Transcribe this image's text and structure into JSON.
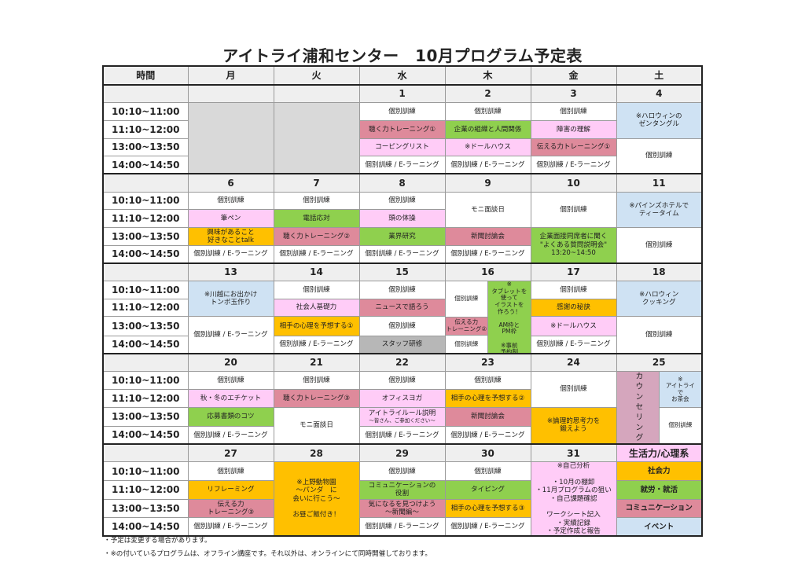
{
  "title": "アイトライ浦和センター　10月プログラム予定表",
  "colors": {
    "white": "#ffffff",
    "gray": "#d9d9d9",
    "pink": "#ffccf7",
    "red": "#de8a9b",
    "green": "#8fd04e",
    "orange": "#ffc000",
    "blue": "#cfe2f3",
    "staff": "#b7b7b7",
    "counsel": "#d5a6bd"
  },
  "header": {
    "time_label": "時間",
    "days": [
      "月",
      "火",
      "水",
      "木",
      "金",
      "土"
    ]
  },
  "times": [
    "10:10~11:00",
    "11:10~12:00",
    "13:00~13:50",
    "14:00~14:50"
  ],
  "weeks": [
    {
      "days": [
        {
          "date": "",
          "blank": true,
          "cells": [
            {
              "text": "",
              "color": "gray",
              "rows": 4
            }
          ]
        },
        {
          "date": "",
          "blank": true,
          "cells": [
            {
              "text": "",
              "color": "gray",
              "rows": 4
            }
          ]
        },
        {
          "date": "1",
          "cells": [
            {
              "text": "個別訓練",
              "color": "white",
              "rows": 1
            },
            {
              "text": "聴く力トレーニング①",
              "color": "red",
              "rows": 1
            },
            {
              "text": "コーピングリスト",
              "color": "pink",
              "rows": 1
            },
            {
              "text": "個別訓練 / E-ラーニング",
              "color": "white",
              "rows": 1
            }
          ]
        },
        {
          "date": "2",
          "cells": [
            {
              "text": "個別訓練",
              "color": "white",
              "rows": 1
            },
            {
              "text": "企業の組織と人間関係",
              "color": "green",
              "rows": 1
            },
            {
              "text": "※ドールハウス",
              "color": "pink",
              "rows": 1
            },
            {
              "text": "個別訓練 / E-ラーニング",
              "color": "white",
              "rows": 1
            }
          ]
        },
        {
          "date": "3",
          "cells": [
            {
              "text": "個別訓練",
              "color": "white",
              "rows": 1
            },
            {
              "text": "障害の理解",
              "color": "pink",
              "rows": 1
            },
            {
              "text": "伝える力トレーニング①",
              "color": "red",
              "rows": 1
            },
            {
              "text": "個別訓練 / E-ラーニング",
              "color": "white",
              "rows": 1
            }
          ]
        },
        {
          "date": "4",
          "cells": [
            {
              "text": "※ハロウィンの\nゼンタングル",
              "color": "blue",
              "rows": 2
            },
            {
              "text": "個別訓練",
              "color": "white",
              "rows": 2
            }
          ]
        }
      ]
    },
    {
      "days": [
        {
          "date": "6",
          "cells": [
            {
              "text": "個別訓練",
              "color": "white",
              "rows": 1
            },
            {
              "text": "筆ペン",
              "color": "pink",
              "rows": 1
            },
            {
              "text": "興味があること\n好きなことtalk",
              "color": "orange",
              "rows": 1
            },
            {
              "text": "個別訓練 / E-ラーニング",
              "color": "white",
              "rows": 1
            }
          ]
        },
        {
          "date": "7",
          "cells": [
            {
              "text": "個別訓練",
              "color": "white",
              "rows": 1
            },
            {
              "text": "電話応対",
              "color": "green",
              "rows": 1
            },
            {
              "text": "聴く力トレーニング②",
              "color": "red",
              "rows": 1
            },
            {
              "text": "個別訓練 / E-ラーニング",
              "color": "white",
              "rows": 1
            }
          ]
        },
        {
          "date": "8",
          "cells": [
            {
              "text": "個別訓練",
              "color": "white",
              "rows": 1
            },
            {
              "text": "頭の体操",
              "color": "pink",
              "rows": 1
            },
            {
              "text": "業界研究",
              "color": "green",
              "rows": 1
            },
            {
              "text": "個別訓練 / E-ラーニング",
              "color": "white",
              "rows": 1
            }
          ]
        },
        {
          "date": "9",
          "cells": [
            {
              "text": "モニ面談日",
              "color": "white",
              "rows": 2
            },
            {
              "text": "新聞討論会",
              "color": "red",
              "rows": 1
            },
            {
              "text": "個別訓練 / E-ラーニング",
              "color": "white",
              "rows": 1
            }
          ]
        },
        {
          "date": "10",
          "cells": [
            {
              "text": "個別訓練",
              "color": "white",
              "rows": 2
            },
            {
              "text": "企業面接同席者に聞く\n\"よくある質問説明会\"\n13:20~14:50",
              "color": "green",
              "rows": 2
            }
          ]
        },
        {
          "date": "11",
          "cells": [
            {
              "text": "※パインズホテルで\nティータイム",
              "color": "blue",
              "rows": 2
            },
            {
              "text": "個別訓練",
              "color": "white",
              "rows": 2
            }
          ]
        }
      ]
    },
    {
      "days": [
        {
          "date": "13",
          "cells": [
            {
              "text": "※川越にお出かけ\nトンボ玉作り",
              "color": "blue",
              "rows": 2
            },
            {
              "text": "個別訓練 / E-ラーニング",
              "color": "white",
              "rows": 2
            }
          ]
        },
        {
          "date": "14",
          "cells": [
            {
              "text": "個別訓練",
              "color": "white",
              "rows": 1
            },
            {
              "text": "社会人基礎力",
              "color": "pink",
              "rows": 1
            },
            {
              "text": "相手の心理を予想する①",
              "color": "orange",
              "rows": 1
            },
            {
              "text": "個別訓練 / E-ラーニング",
              "color": "white",
              "rows": 1
            }
          ]
        },
        {
          "date": "15",
          "cells": [
            {
              "text": "個別訓練",
              "color": "white",
              "rows": 1
            },
            {
              "text": "ニュースで語ろう",
              "color": "red",
              "rows": 1
            },
            {
              "text": "個別訓練",
              "color": "white",
              "rows": 1
            },
            {
              "text": "スタッフ研修",
              "color": "staff",
              "rows": 1
            }
          ]
        },
        {
          "date": "16",
          "split": [
            [
              {
                "text": "個別訓練",
                "color": "white",
                "rows": 2
              },
              {
                "text": "伝える力\nトレーニング②",
                "color": "red",
                "rows": 1
              },
              {
                "text": "個別訓練",
                "color": "white",
                "rows": 1
              }
            ],
            [
              {
                "text": "※\nタブレットを\n使って\nイラストを\n作ろう！\n\nAM枠と\nPM枠\n\n※事前\n予約制",
                "color": "green",
                "rows": 4
              }
            ]
          ]
        },
        {
          "date": "17",
          "cells": [
            {
              "text": "個別訓練",
              "color": "white",
              "rows": 1
            },
            {
              "text": "感謝の秘訣",
              "color": "orange",
              "rows": 1
            },
            {
              "text": "※ドールハウス",
              "color": "pink",
              "rows": 1
            },
            {
              "text": "個別訓練 / E-ラーニング",
              "color": "white",
              "rows": 1
            }
          ]
        },
        {
          "date": "18",
          "cells": [
            {
              "text": "※ハロウィン\nクッキング",
              "color": "blue",
              "rows": 2
            },
            {
              "text": "個別訓練",
              "color": "white",
              "rows": 2
            }
          ]
        }
      ]
    },
    {
      "days": [
        {
          "date": "20",
          "cells": [
            {
              "text": "個別訓練",
              "color": "white",
              "rows": 1
            },
            {
              "text": "秋・冬のエチケット",
              "color": "pink",
              "rows": 1
            },
            {
              "text": "応募書類のコツ",
              "color": "green",
              "rows": 1
            },
            {
              "text": "個別訓練 / E-ラーニング",
              "color": "white",
              "rows": 1
            }
          ]
        },
        {
          "date": "21",
          "cells": [
            {
              "text": "個別訓練",
              "color": "white",
              "rows": 1
            },
            {
              "text": "聴く力トレーニング③",
              "color": "red",
              "rows": 1
            },
            {
              "text": "モニ面談日",
              "color": "white",
              "rows": 2
            }
          ]
        },
        {
          "date": "22",
          "cells": [
            {
              "text": "個別訓練",
              "color": "white",
              "rows": 1
            },
            {
              "text": "オフィスヨガ",
              "color": "pink",
              "rows": 1
            },
            {
              "text": "アイトライルール説明",
              "sub": "～皆さん、ご参加ください～",
              "color": "pink",
              "rows": 1
            },
            {
              "text": "個別訓練 / E-ラーニング",
              "color": "white",
              "rows": 1
            }
          ]
        },
        {
          "date": "23",
          "cells": [
            {
              "text": "個別訓練",
              "color": "white",
              "rows": 1
            },
            {
              "text": "相手の心理を予想する②",
              "color": "orange",
              "rows": 1
            },
            {
              "text": "新聞討論会",
              "color": "red",
              "rows": 1
            },
            {
              "text": "個別訓練 / E-ラーニング",
              "color": "white",
              "rows": 1
            }
          ]
        },
        {
          "date": "24",
          "cells": [
            {
              "text": "個別訓練",
              "color": "white",
              "rows": 2
            },
            {
              "text": "※論理的思考力を\n鍛えよう",
              "color": "orange",
              "rows": 2
            }
          ]
        },
        {
          "date": "25",
          "split": [
            [
              {
                "text": "カウンセリング",
                "color": "counsel",
                "rows": 4,
                "vertical": true
              }
            ],
            [
              {
                "text": "※\nアイトライ\nで\nお茶会",
                "color": "blue",
                "rows": 2
              },
              {
                "text": "個別訓練",
                "color": "white",
                "rows": 2
              }
            ]
          ]
        }
      ]
    },
    {
      "days": [
        {
          "date": "27",
          "cells": [
            {
              "text": "個別訓練",
              "color": "white",
              "rows": 1
            },
            {
              "text": "リフレーミング",
              "color": "orange",
              "rows": 1
            },
            {
              "text": "伝える力\nトレーニング③",
              "color": "red",
              "rows": 1
            },
            {
              "text": "個別訓練 / E-ラーニング",
              "color": "white",
              "rows": 1
            }
          ]
        },
        {
          "date": "28",
          "cells": [
            {
              "text": "※上野動物園\n～パンダ　に\n会いに行こう～\n\nお昼ご飯付き！",
              "color": "orange",
              "rows": 4
            }
          ]
        },
        {
          "date": "29",
          "cells": [
            {
              "text": "個別訓練",
              "color": "white",
              "rows": 1
            },
            {
              "text": "コミュニケーションの\n役割",
              "color": "green",
              "rows": 1
            },
            {
              "text": "気になるを見つけよう\n～新聞編～",
              "color": "red",
              "rows": 1
            },
            {
              "text": "個別訓練 / E-ラーニング",
              "color": "white",
              "rows": 1
            }
          ]
        },
        {
          "date": "30",
          "cells": [
            {
              "text": "個別訓練",
              "color": "white",
              "rows": 1
            },
            {
              "text": "タイピング",
              "color": "green",
              "rows": 1
            },
            {
              "text": "相手の心理を予想する③",
              "color": "orange",
              "rows": 1
            },
            {
              "text": "個別訓練 / E-ラーニング",
              "color": "white",
              "rows": 1
            }
          ]
        },
        {
          "date": "31",
          "cells": [
            {
              "text": "※自己分析\n\n・10月の棚卸\n・11月プログラムの狙い\n・自己課題確認\n\nワークシート記入\n・実績記録\n・予定作成と報告",
              "color": "pink",
              "rows": 4
            }
          ]
        },
        {
          "date": "生活力/心理系",
          "date_color": "pink",
          "legend": true,
          "cells": [
            {
              "text": "社会力",
              "color": "orange",
              "rows": 1,
              "bold": true
            },
            {
              "text": "就労・就活",
              "color": "green",
              "rows": 1,
              "bold": true
            },
            {
              "text": "コミュニケーション",
              "color": "red",
              "rows": 1,
              "bold": true
            },
            {
              "text": "イベント",
              "color": "blue",
              "rows": 1,
              "bold": true
            }
          ]
        }
      ]
    }
  ],
  "notes": [
    "・予定は変更する場合があります。",
    "・※の付いているプログラムは、オフライン講座です。それ以外は、オンラインにて同時開催しております。"
  ]
}
